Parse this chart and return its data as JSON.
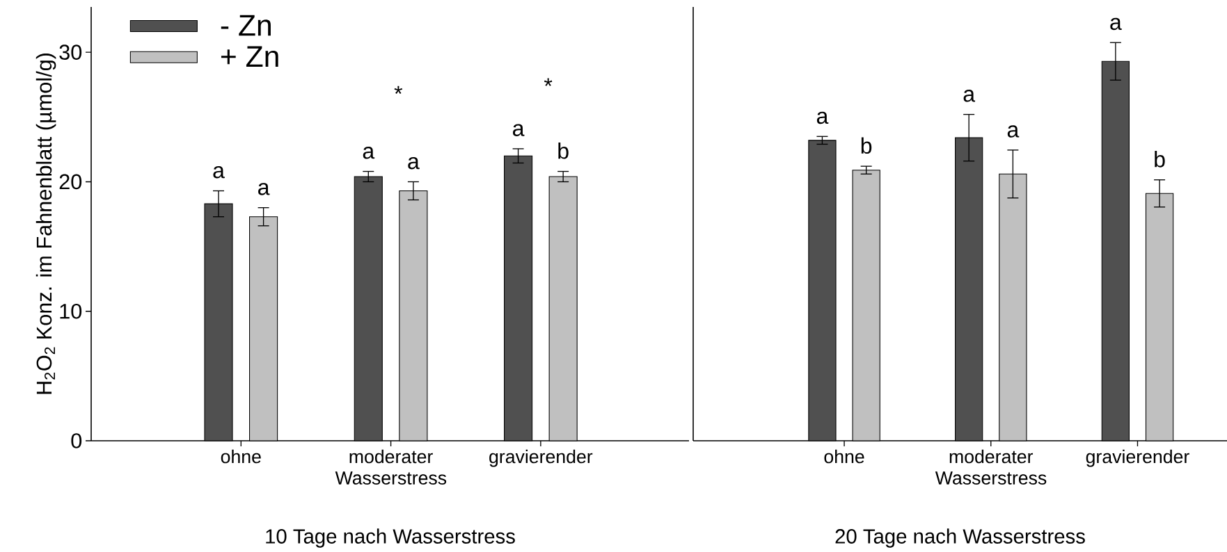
{
  "chart_data": [
    {
      "type": "bar",
      "xlabel": "10 Tage nach Wasserstress",
      "ylabel": "H$_{2}$O$_{2}$ Konz. im Fahnenblatt (µmol/g)",
      "categories": [
        "ohne",
        "moderater Wasserstress",
        "gravierender"
      ],
      "series": [
        {
          "name": "-  Zn",
          "color": "#505050",
          "values": [
            18.3,
            20.4,
            22.0
          ],
          "errors": [
            1.0,
            0.4,
            0.55
          ],
          "value_labels": [
            "a",
            "a",
            "a"
          ]
        },
        {
          "name": "+ Zn",
          "color": "#c0c0c0",
          "values": [
            17.3,
            19.3,
            20.4
          ],
          "errors": [
            0.7,
            0.7,
            0.4
          ],
          "value_labels": [
            "a",
            "a",
            "b"
          ]
        }
      ],
      "ylim": [
        0,
        33.5
      ],
      "yticks": [
        0,
        10,
        20,
        30
      ],
      "legend": "top left",
      "annotations": [
        "*",
        "*"
      ]
    },
    {
      "type": "bar",
      "xlabel": "20 Tage nach Wasserstress",
      "categories": [
        "ohne",
        "moderater Wasserstress",
        "gravierender"
      ],
      "series": [
        {
          "color": "#505050",
          "values": [
            23.2,
            23.4,
            29.3
          ],
          "errors": [
            0.3,
            1.8,
            1.45
          ],
          "value_labels": [
            "a",
            "a",
            "a"
          ]
        },
        {
          "color": "#c0c0c0",
          "values": [
            20.9,
            20.6,
            19.1
          ],
          "errors": [
            0.3,
            1.85,
            1.05
          ],
          "value_labels": [
            "b",
            "a",
            "b"
          ]
        }
      ],
      "ylim": [
        0,
        33.5
      ],
      "tick_labels": "x"
    }
  ]
}
